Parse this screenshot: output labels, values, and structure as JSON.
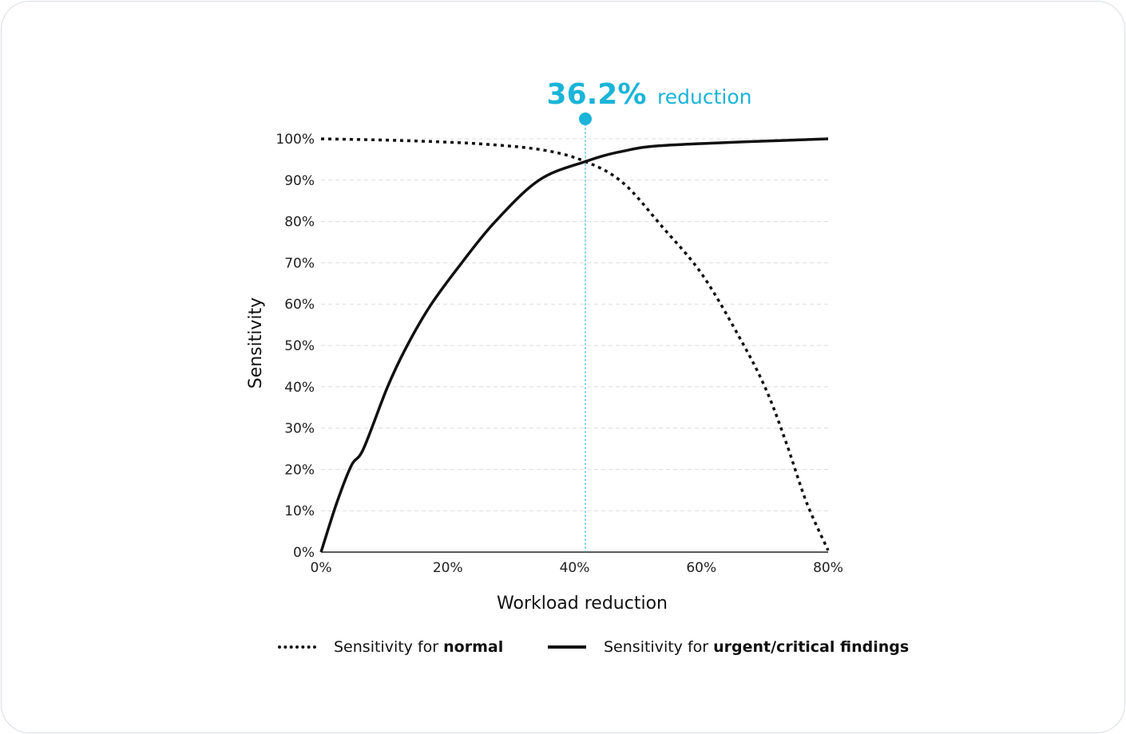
{
  "chart_data": {
    "type": "line",
    "xlabel": "Workload reduction",
    "ylabel": "Sensitivity",
    "xlim": [
      0,
      80
    ],
    "ylim": [
      0,
      100
    ],
    "x_ticks": [
      "0%",
      "20%",
      "40%",
      "60%",
      "80%"
    ],
    "x_tick_values": [
      0,
      20,
      40,
      60,
      80
    ],
    "y_ticks": [
      "0%",
      "10%",
      "20%",
      "30%",
      "40%",
      "50%",
      "60%",
      "70%",
      "80%",
      "90%",
      "100%"
    ],
    "y_tick_values": [
      0,
      10,
      20,
      30,
      40,
      50,
      60,
      70,
      80,
      90,
      100
    ],
    "grid": "horizontal dashed",
    "legend_position": "bottom",
    "series": [
      {
        "name_prefix": "Sensitivity for ",
        "name_bold": "normal",
        "style": "dotted",
        "color": "#111111",
        "x": [
          0,
          12.3,
          24.9,
          35,
          41.7,
          47.6,
          53.9,
          60.2,
          66.5,
          70.3,
          73.4,
          76.6,
          80
        ],
        "y": [
          100,
          99.6,
          98.8,
          97.3,
          94.5,
          89.4,
          78.6,
          67,
          50.6,
          39,
          26.4,
          12,
          0.4
        ]
      },
      {
        "name_prefix": "Sensitivity for ",
        "name_bold": "urgent/critical findings",
        "style": "solid",
        "color": "#111111",
        "x": [
          0,
          2.5,
          4.8,
          6.7,
          10.5,
          13.6,
          17.4,
          22.2,
          27.5,
          34.4,
          41.7,
          47.6,
          55.2,
          80
        ],
        "y": [
          0,
          12,
          21,
          25,
          40,
          50,
          60,
          70,
          80,
          90,
          94.5,
          97,
          98.5,
          100
        ]
      }
    ],
    "annotation": {
      "value": "36.2%",
      "text": "reduction",
      "x": 41.7,
      "color": "#1ab4d8"
    }
  }
}
